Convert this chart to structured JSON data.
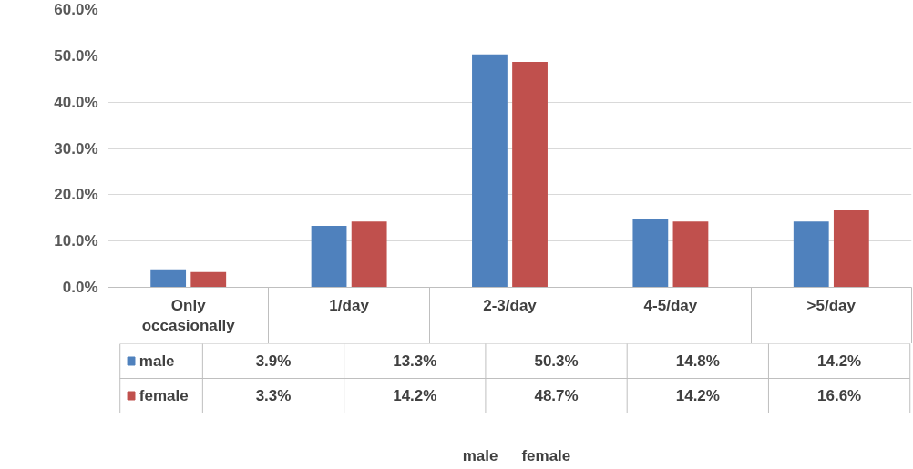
{
  "chart_data": {
    "type": "bar",
    "categories": [
      "Only occasionally",
      "1/day",
      "2-3/day",
      "4-5/day",
      ">5/day"
    ],
    "series": [
      {
        "name": "male",
        "color": "#4f81bd",
        "values": [
          3.9,
          13.3,
          50.3,
          14.8,
          14.2
        ]
      },
      {
        "name": "female",
        "color": "#c0504d",
        "values": [
          3.3,
          14.2,
          48.7,
          14.2,
          16.6
        ]
      }
    ],
    "ylim": [
      0,
      60
    ],
    "yticks": [
      {
        "value": 0,
        "label": "0.0%"
      },
      {
        "value": 10,
        "label": "10.0%"
      },
      {
        "value": 20,
        "label": "20.0%"
      },
      {
        "value": 30,
        "label": "30.0%"
      },
      {
        "value": 40,
        "label": "40.0%"
      },
      {
        "value": 50,
        "label": "50.0%"
      },
      {
        "value": 60,
        "label": "60.0%"
      }
    ],
    "value_labels": [
      [
        "3.9%",
        "13.3%",
        "50.3%",
        "14.8%",
        "14.2%"
      ],
      [
        "3.3%",
        "14.2%",
        "48.7%",
        "14.2%",
        "16.6%"
      ]
    ],
    "grid": "y",
    "legend": "bottom"
  }
}
